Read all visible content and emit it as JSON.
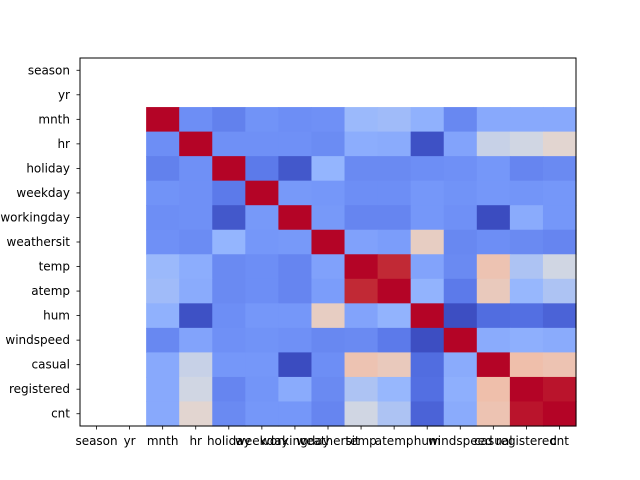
{
  "chart_data": {
    "type": "heatmap",
    "title": "",
    "xlabel": "",
    "ylabel": "",
    "colormap": "coolwarm",
    "value_range": [
      -0.3,
      1.0
    ],
    "labels": [
      "season",
      "yr",
      "mnth",
      "hr",
      "holiday",
      "weekday",
      "workingday",
      "weathersit",
      "temp",
      "atemp",
      "hum",
      "windspeed",
      "casual",
      "registered",
      "cnt"
    ],
    "matrix": [
      [
        null,
        null,
        null,
        null,
        null,
        null,
        null,
        null,
        null,
        null,
        null,
        null,
        null,
        null,
        null
      ],
      [
        null,
        null,
        null,
        null,
        null,
        null,
        null,
        null,
        null,
        null,
        null,
        null,
        null,
        null,
        null
      ],
      [
        null,
        null,
        1.0,
        -0.01,
        -0.07,
        0.01,
        -0.01,
        0.0,
        0.2,
        0.21,
        0.16,
        -0.04,
        0.12,
        0.12,
        0.12
      ],
      [
        null,
        null,
        -0.01,
        1.0,
        0.0,
        0.0,
        0.0,
        -0.02,
        0.14,
        0.13,
        -0.28,
        0.09,
        0.3,
        0.32,
        0.39
      ],
      [
        null,
        null,
        -0.07,
        0.0,
        1.0,
        -0.1,
        -0.25,
        0.18,
        -0.03,
        -0.03,
        -0.01,
        0.0,
        0.03,
        -0.05,
        -0.03
      ],
      [
        null,
        null,
        0.01,
        0.0,
        -0.1,
        1.0,
        0.04,
        0.03,
        -0.01,
        -0.01,
        0.03,
        0.01,
        0.03,
        0.02,
        0.03
      ],
      [
        null,
        null,
        -0.01,
        0.0,
        -0.25,
        0.04,
        1.0,
        0.04,
        -0.05,
        -0.05,
        0.03,
        0.0,
        -0.3,
        0.13,
        0.03
      ],
      [
        null,
        null,
        0.0,
        -0.02,
        0.18,
        0.03,
        0.04,
        1.0,
        0.08,
        0.06,
        0.43,
        -0.04,
        -0.01,
        -0.03,
        -0.05
      ],
      [
        null,
        null,
        0.2,
        0.14,
        -0.03,
        -0.01,
        -0.05,
        0.08,
        1.0,
        0.93,
        0.09,
        -0.03,
        0.48,
        0.24,
        0.32
      ],
      [
        null,
        null,
        0.21,
        0.13,
        -0.03,
        -0.01,
        -0.05,
        0.06,
        0.93,
        1.0,
        0.17,
        -0.1,
        0.45,
        0.19,
        0.24
      ],
      [
        null,
        null,
        0.16,
        -0.28,
        -0.01,
        0.03,
        0.03,
        0.43,
        0.09,
        0.17,
        1.0,
        -0.29,
        -0.16,
        -0.15,
        -0.2
      ],
      [
        null,
        null,
        -0.04,
        0.09,
        0.0,
        0.01,
        0.0,
        -0.04,
        -0.03,
        -0.1,
        -0.29,
        1.0,
        0.13,
        0.15,
        0.13
      ],
      [
        null,
        null,
        0.12,
        0.3,
        0.03,
        0.03,
        -0.3,
        -0.01,
        0.48,
        0.45,
        -0.16,
        0.13,
        1.0,
        0.5,
        0.48
      ],
      [
        null,
        null,
        0.12,
        0.32,
        -0.05,
        0.02,
        0.13,
        -0.03,
        0.24,
        0.19,
        -0.15,
        0.15,
        0.5,
        1.0,
        0.97
      ],
      [
        null,
        null,
        0.12,
        0.39,
        -0.03,
        0.03,
        0.03,
        -0.05,
        0.32,
        0.24,
        -0.2,
        0.13,
        0.48,
        0.97,
        1.0
      ]
    ]
  }
}
